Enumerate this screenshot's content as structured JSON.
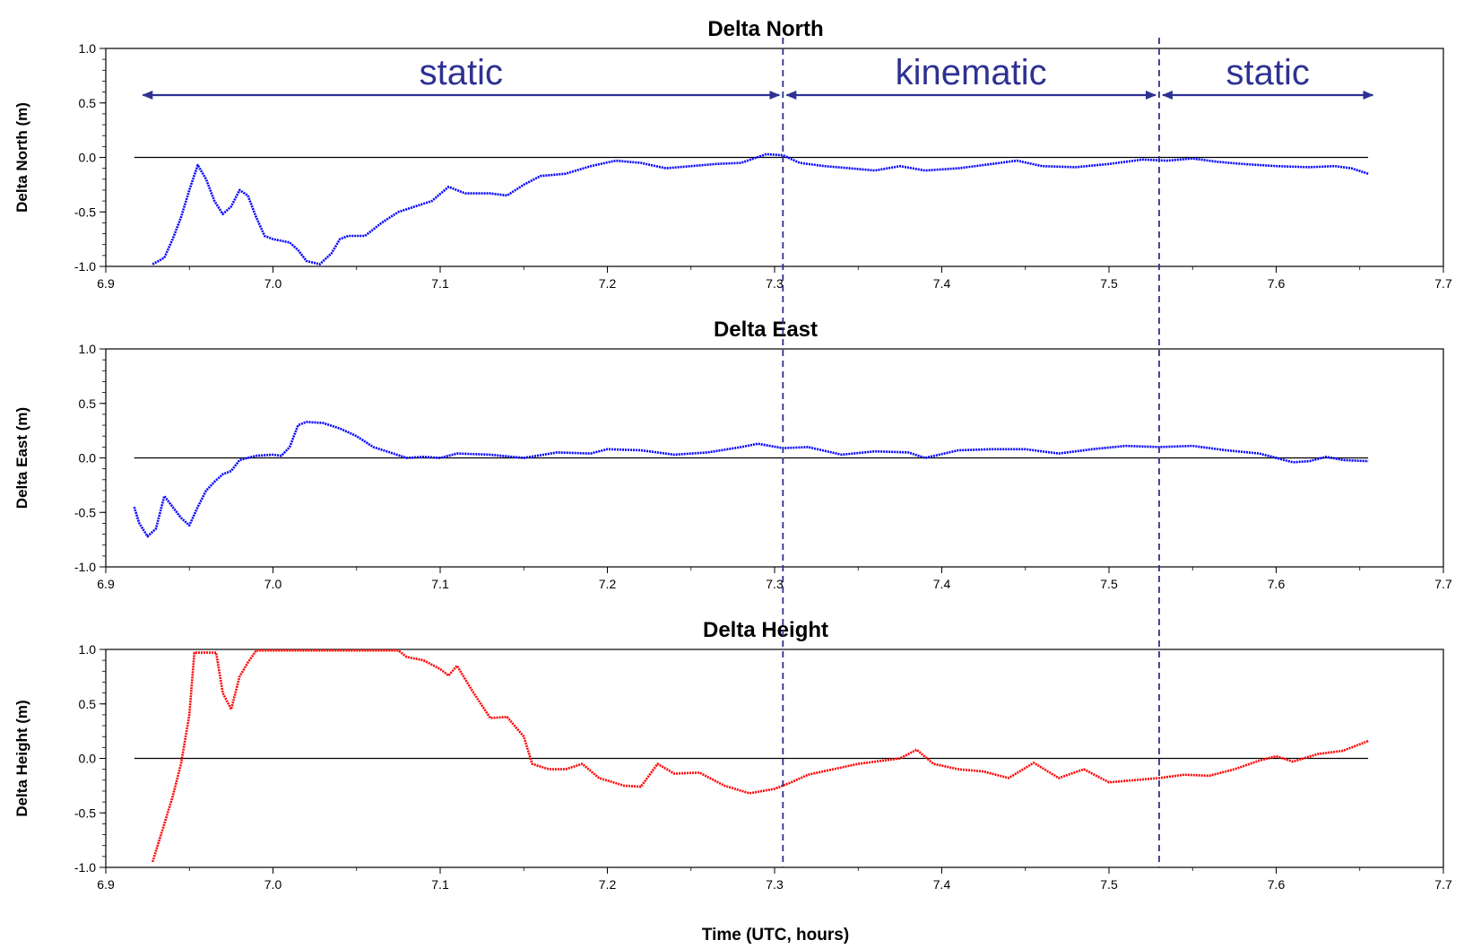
{
  "chart_data": {
    "type": "scatter",
    "xlabel": "Time (UTC, hours)",
    "xlim": [
      6.9,
      7.7
    ],
    "xticks": [
      "6.9",
      "7.0",
      "7.1",
      "7.2",
      "7.3",
      "7.4",
      "7.5",
      "7.6",
      "7.7"
    ],
    "yticks": [
      "1.0",
      "0.5",
      "0.0",
      "-0.5",
      "-1.0"
    ],
    "phase_boundaries": [
      7.305,
      7.53
    ],
    "phase_labels": [
      {
        "text": "static",
        "x_from": 6.92,
        "x_to": 7.305
      },
      {
        "text": "kinematic",
        "x_from": 7.305,
        "x_to": 7.53
      },
      {
        "text": "static",
        "x_from": 7.53,
        "x_to": 7.66
      }
    ],
    "panels": [
      {
        "title": "Delta North",
        "ylabel": "Delta North (m)",
        "ylim": [
          -1.0,
          1.0
        ],
        "color": "#0000ff",
        "x": [
          6.928,
          6.935,
          6.94,
          6.945,
          6.95,
          6.955,
          6.96,
          6.965,
          6.97,
          6.975,
          6.98,
          6.985,
          6.99,
          6.995,
          7.0,
          7.01,
          7.015,
          7.02,
          7.028,
          7.035,
          7.04,
          7.045,
          7.055,
          7.065,
          7.075,
          7.085,
          7.095,
          7.105,
          7.115,
          7.13,
          7.14,
          7.15,
          7.16,
          7.175,
          7.19,
          7.205,
          7.22,
          7.235,
          7.25,
          7.265,
          7.28,
          7.295,
          7.305,
          7.315,
          7.33,
          7.345,
          7.36,
          7.375,
          7.39,
          7.41,
          7.43,
          7.445,
          7.46,
          7.48,
          7.5,
          7.52,
          7.535,
          7.55,
          7.565,
          7.58,
          7.6,
          7.62,
          7.635,
          7.645,
          7.655
        ],
        "y": [
          -0.98,
          -0.92,
          -0.75,
          -0.55,
          -0.3,
          -0.07,
          -0.2,
          -0.4,
          -0.52,
          -0.45,
          -0.3,
          -0.35,
          -0.55,
          -0.72,
          -0.75,
          -0.78,
          -0.85,
          -0.95,
          -0.98,
          -0.88,
          -0.75,
          -0.72,
          -0.72,
          -0.6,
          -0.5,
          -0.45,
          -0.4,
          -0.27,
          -0.33,
          -0.33,
          -0.35,
          -0.25,
          -0.17,
          -0.15,
          -0.08,
          -0.03,
          -0.05,
          -0.1,
          -0.08,
          -0.06,
          -0.05,
          0.03,
          0.02,
          -0.05,
          -0.08,
          -0.1,
          -0.12,
          -0.08,
          -0.12,
          -0.1,
          -0.06,
          -0.03,
          -0.08,
          -0.09,
          -0.06,
          -0.02,
          -0.03,
          -0.01,
          -0.04,
          -0.06,
          -0.08,
          -0.09,
          -0.08,
          -0.1,
          -0.15
        ]
      },
      {
        "title": "Delta East",
        "ylabel": "Delta East (m)",
        "ylim": [
          -1.0,
          1.0
        ],
        "color": "#0000ff",
        "x": [
          6.917,
          6.92,
          6.925,
          6.93,
          6.935,
          6.94,
          6.945,
          6.95,
          6.955,
          6.96,
          6.965,
          6.97,
          6.975,
          6.98,
          6.985,
          6.99,
          7.0,
          7.005,
          7.01,
          7.015,
          7.02,
          7.03,
          7.04,
          7.05,
          7.06,
          7.07,
          7.08,
          7.09,
          7.1,
          7.11,
          7.13,
          7.15,
          7.17,
          7.19,
          7.2,
          7.22,
          7.24,
          7.26,
          7.28,
          7.29,
          7.305,
          7.32,
          7.34,
          7.36,
          7.38,
          7.39,
          7.41,
          7.43,
          7.45,
          7.47,
          7.49,
          7.51,
          7.53,
          7.55,
          7.57,
          7.59,
          7.61,
          7.62,
          7.63,
          7.64,
          7.655
        ],
        "y": [
          -0.45,
          -0.6,
          -0.72,
          -0.65,
          -0.35,
          -0.45,
          -0.55,
          -0.62,
          -0.45,
          -0.3,
          -0.22,
          -0.15,
          -0.12,
          -0.02,
          0.0,
          0.02,
          0.03,
          0.02,
          0.1,
          0.3,
          0.33,
          0.32,
          0.27,
          0.2,
          0.1,
          0.05,
          0.0,
          0.01,
          0.0,
          0.04,
          0.03,
          0.0,
          0.05,
          0.04,
          0.08,
          0.07,
          0.03,
          0.05,
          0.1,
          0.13,
          0.09,
          0.1,
          0.03,
          0.06,
          0.05,
          0.0,
          0.07,
          0.08,
          0.08,
          0.04,
          0.08,
          0.11,
          0.1,
          0.11,
          0.07,
          0.04,
          -0.04,
          -0.03,
          0.01,
          -0.02,
          -0.03
        ]
      },
      {
        "title": "Delta Height",
        "ylabel": "Delta Height (m)",
        "ylim": [
          -1.0,
          1.0
        ],
        "color": "#ff0000",
        "x": [
          6.928,
          6.935,
          6.94,
          6.945,
          6.95,
          6.953,
          6.966,
          6.97,
          6.975,
          6.98,
          6.985,
          6.99,
          7.075,
          7.08,
          7.09,
          7.1,
          7.105,
          7.11,
          7.12,
          7.13,
          7.14,
          7.15,
          7.155,
          7.165,
          7.175,
          7.185,
          7.195,
          7.21,
          7.22,
          7.23,
          7.24,
          7.255,
          7.27,
          7.285,
          7.3,
          7.31,
          7.32,
          7.335,
          7.35,
          7.365,
          7.375,
          7.385,
          7.395,
          7.41,
          7.425,
          7.44,
          7.455,
          7.47,
          7.485,
          7.5,
          7.515,
          7.53,
          7.545,
          7.56,
          7.575,
          7.59,
          7.6,
          7.61,
          7.625,
          7.64,
          7.655
        ],
        "y": [
          -0.95,
          -0.6,
          -0.35,
          -0.05,
          0.4,
          0.97,
          0.97,
          0.6,
          0.45,
          0.75,
          0.88,
          0.99,
          0.99,
          0.93,
          0.9,
          0.82,
          0.76,
          0.85,
          0.6,
          0.37,
          0.38,
          0.2,
          -0.05,
          -0.1,
          -0.1,
          -0.05,
          -0.18,
          -0.25,
          -0.26,
          -0.05,
          -0.14,
          -0.13,
          -0.25,
          -0.32,
          -0.28,
          -0.22,
          -0.15,
          -0.1,
          -0.05,
          -0.02,
          0.0,
          0.08,
          -0.05,
          -0.1,
          -0.12,
          -0.18,
          -0.04,
          -0.18,
          -0.1,
          -0.22,
          -0.2,
          -0.18,
          -0.15,
          -0.16,
          -0.1,
          -0.02,
          0.02,
          -0.03,
          0.04,
          0.07,
          0.16
        ]
      }
    ]
  }
}
